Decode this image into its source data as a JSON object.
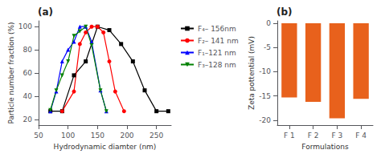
{
  "chart_data": [
    {
      "type": "line",
      "title": "(a)",
      "xlabel": "Hydrodynamic diamter (nm)",
      "ylabel": "Particle number fraction (%)",
      "xlim": [
        50,
        275
      ],
      "ylim": [
        15,
        105
      ],
      "xticks": [
        50,
        100,
        150,
        200,
        250
      ],
      "yticks": [
        20,
        40,
        60,
        80,
        100
      ],
      "grid": false,
      "legend": "upper right",
      "series": [
        {
          "name": "F₄– 156nm",
          "color": "black",
          "marker": "square",
          "x": [
            70,
            90,
            110,
            130,
            150,
            170,
            190,
            210,
            230,
            250,
            270
          ],
          "values": [
            27,
            27,
            58,
            70,
            100,
            97,
            85,
            70,
            45,
            27,
            27
          ]
        },
        {
          "name": "F₂– 141 nm",
          "color": "red",
          "marker": "circle",
          "x": [
            90,
            110,
            120,
            130,
            140,
            150,
            160,
            170,
            180,
            195
          ],
          "values": [
            27,
            44,
            85,
            95,
            100,
            100,
            95,
            70,
            44,
            27
          ]
        },
        {
          "name": "F₁–121 nm",
          "color": "blue",
          "marker": "triangle-up",
          "x": [
            70,
            80,
            90,
            100,
            110,
            120,
            130,
            140,
            155,
            165
          ],
          "values": [
            27,
            44,
            70,
            80,
            87,
            100,
            100,
            87,
            45,
            27
          ]
        },
        {
          "name": "F₃–128 nm",
          "color": "green",
          "marker": "triangle-down",
          "x": [
            70,
            80,
            90,
            100,
            110,
            120,
            130,
            140,
            155,
            165
          ],
          "values": [
            28,
            45,
            58,
            70,
            92,
            96,
            100,
            84,
            45,
            27
          ]
        }
      ]
    },
    {
      "type": "bar",
      "title": "(b)",
      "xlabel": "Formulations",
      "ylabel": "Zeta pottential (mV)",
      "categories": [
        "F 1",
        "F 2",
        "F 3",
        "F 4"
      ],
      "values": [
        -15.3,
        -16.2,
        -19.6,
        -15.6
      ],
      "color": "#E8611C",
      "ylim": [
        -21,
        0.5
      ],
      "yticks": [
        -20,
        -15,
        -10,
        -5,
        0
      ],
      "grid": false
    }
  ]
}
